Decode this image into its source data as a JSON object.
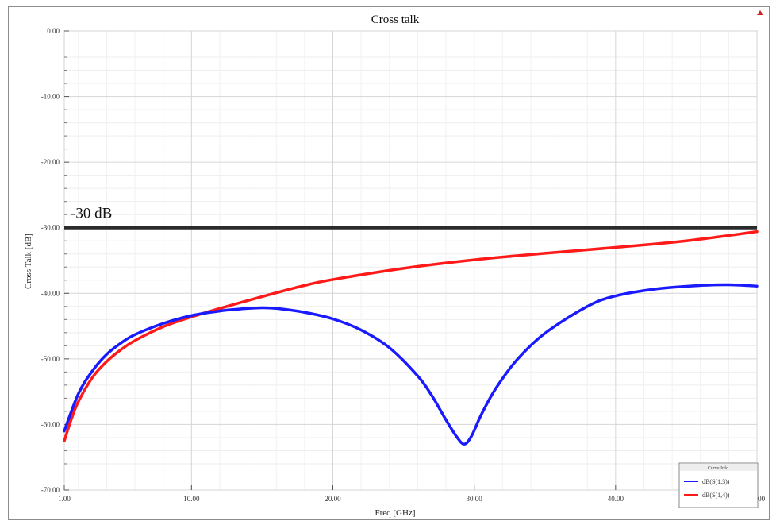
{
  "chart_data": {
    "type": "line",
    "title": "Cross talk",
    "xlabel": "Freq [GHz]",
    "ylabel": "Cross Talk [dB]",
    "xlim": [
      1,
      50
    ],
    "ylim": [
      -70,
      0
    ],
    "x_ticks": [
      1,
      10,
      20,
      30,
      40,
      50
    ],
    "x_tick_labels": [
      "1.00",
      "10.00",
      "20.00",
      "30.00",
      "40.00",
      "50.00"
    ],
    "y_ticks": [
      0,
      -10,
      -20,
      -30,
      -40,
      -50,
      -60,
      -70
    ],
    "y_tick_labels": [
      "0.00",
      "-10.00",
      "-20.00",
      "-30.00",
      "-40.00",
      "-50.00",
      "-60.00",
      "-70.00"
    ],
    "grid": true,
    "legend": {
      "title": "Curve Info",
      "position": "bottom-right"
    },
    "reference_line": {
      "y": -30,
      "label": "-30 dB",
      "color": "#2b2b2b"
    },
    "series": [
      {
        "name": "dB(S(1,3))",
        "color": "#1a1aff",
        "x": [
          1,
          2,
          3,
          4,
          5,
          6,
          8,
          10,
          12,
          14,
          15,
          16,
          18,
          20,
          22,
          24,
          26,
          27,
          28,
          28.8,
          29.3,
          29.8,
          30.5,
          31.5,
          33,
          35,
          38,
          40,
          43,
          46,
          48,
          50
        ],
        "y": [
          -61,
          -55.3,
          -51.8,
          -49.3,
          -47.6,
          -46.3,
          -44.6,
          -43.4,
          -42.7,
          -42.3,
          -42.2,
          -42.3,
          -42.9,
          -43.9,
          -45.6,
          -48.3,
          -52.6,
          -55.6,
          -59.3,
          -62,
          -63,
          -61.8,
          -58.5,
          -54.6,
          -50.2,
          -46.1,
          -42,
          -40.4,
          -39.3,
          -38.8,
          -38.7,
          -38.9
        ]
      },
      {
        "name": "dB(S(1,4))",
        "color": "#ff1a1a",
        "x": [
          1,
          1.5,
          2,
          3,
          4,
          5,
          6,
          8,
          10,
          12,
          15,
          18,
          20,
          25,
          30,
          35,
          40,
          45,
          50
        ],
        "y": [
          -62.5,
          -59.2,
          -56.5,
          -52.8,
          -50.4,
          -48.6,
          -47.2,
          -45.1,
          -43.6,
          -42.3,
          -40.5,
          -38.8,
          -37.9,
          -36.2,
          -34.9,
          -33.9,
          -33,
          -32,
          -30.6
        ]
      }
    ]
  }
}
